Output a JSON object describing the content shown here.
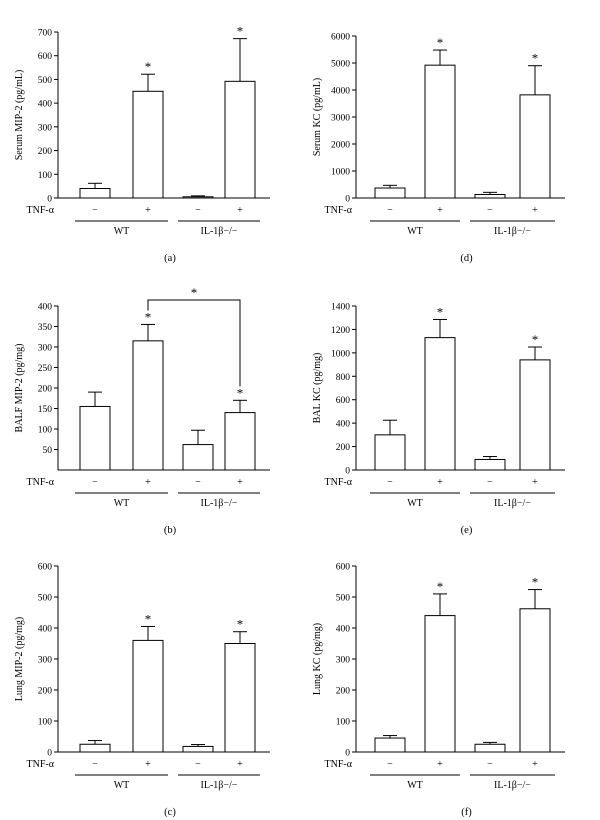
{
  "chart_data": [
    {
      "id": "a",
      "type": "bar",
      "panel_label": "(a)",
      "ylabel": "Serum MIP-2 (pg/mL)",
      "ylim": [
        0,
        700
      ],
      "yticks": [
        0,
        100,
        200,
        300,
        400,
        500,
        600,
        700
      ],
      "treatment_label": "TNF-α",
      "treatment_ticks": [
        "−",
        "+",
        "−",
        "+"
      ],
      "groups": [
        "WT",
        "IL-1β−/−"
      ],
      "values": [
        40,
        450,
        5,
        492
      ],
      "errors": [
        22,
        72,
        4,
        180
      ],
      "significance": [
        false,
        true,
        false,
        true
      ],
      "brackets": []
    },
    {
      "id": "d",
      "type": "bar",
      "panel_label": "(d)",
      "ylabel": "Serum KC (pg/mL)",
      "ylim": [
        0,
        6000
      ],
      "yticks": [
        0,
        1000,
        2000,
        3000,
        4000,
        5000,
        6000
      ],
      "treatment_label": "TNF-α",
      "treatment_ticks": [
        "−",
        "+",
        "−",
        "+"
      ],
      "groups": [
        "WT",
        "IL-1β−/−"
      ],
      "values": [
        370,
        4920,
        130,
        3820
      ],
      "errors": [
        100,
        560,
        80,
        1080
      ],
      "significance": [
        false,
        true,
        false,
        true
      ],
      "brackets": []
    },
    {
      "id": "b",
      "type": "bar",
      "panel_label": "(b)",
      "ylabel": "BALF MIP-2 (pg/mg)",
      "ylim": [
        0,
        400
      ],
      "yticks": [
        50,
        100,
        150,
        200,
        250,
        300,
        350,
        400
      ],
      "treatment_label": "TNF-α",
      "treatment_ticks": [
        "−",
        "+",
        "−",
        "+"
      ],
      "groups": [
        "WT",
        "IL-1β−/−"
      ],
      "values": [
        155,
        315,
        62,
        140
      ],
      "errors": [
        35,
        40,
        35,
        30
      ],
      "significance": [
        false,
        true,
        false,
        true
      ],
      "brackets": [
        {
          "from": 1,
          "to": 3,
          "label": "*",
          "y": 400
        }
      ]
    },
    {
      "id": "e",
      "type": "bar",
      "panel_label": "(e)",
      "ylabel": "BAL KC (pg/mg)",
      "ylim": [
        0,
        1400
      ],
      "yticks": [
        0,
        200,
        400,
        600,
        800,
        1000,
        1200,
        1400
      ],
      "treatment_label": "TNF-α",
      "treatment_ticks": [
        "−",
        "+",
        "−",
        "+"
      ],
      "groups": [
        "WT",
        "IL-1β−/−"
      ],
      "values": [
        300,
        1130,
        90,
        940
      ],
      "errors": [
        125,
        155,
        25,
        110
      ],
      "significance": [
        false,
        true,
        false,
        true
      ],
      "brackets": []
    },
    {
      "id": "c",
      "type": "bar",
      "panel_label": "(c)",
      "ylabel": "Lung MIP-2 (pg/mg)",
      "ylim": [
        0,
        600
      ],
      "yticks": [
        0,
        100,
        200,
        300,
        400,
        500,
        600
      ],
      "treatment_label": "TNF-α",
      "treatment_ticks": [
        "−",
        "+",
        "−",
        "+"
      ],
      "groups": [
        "WT",
        "IL-1β−/−"
      ],
      "values": [
        25,
        360,
        18,
        350
      ],
      "errors": [
        12,
        45,
        6,
        38
      ],
      "significance": [
        false,
        true,
        false,
        true
      ],
      "brackets": []
    },
    {
      "id": "f",
      "type": "bar",
      "panel_label": "(f)",
      "ylabel": "Lung KC (pg/mg)",
      "ylim": [
        0,
        600
      ],
      "yticks": [
        0,
        100,
        200,
        300,
        400,
        500,
        600
      ],
      "treatment_label": "TNF-α",
      "treatment_ticks": [
        "−",
        "+",
        "−",
        "+"
      ],
      "groups": [
        "WT",
        "IL-1β−/−"
      ],
      "values": [
        45,
        440,
        25,
        462
      ],
      "errors": [
        8,
        70,
        6,
        62
      ],
      "significance": [
        false,
        true,
        false,
        true
      ],
      "brackets": []
    }
  ]
}
